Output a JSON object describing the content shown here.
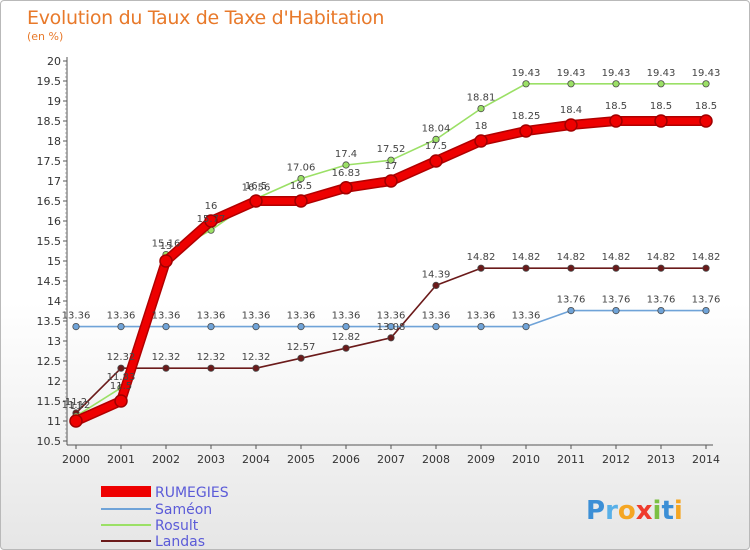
{
  "header": {
    "title": "Evolution du Taux de Taxe d'Habitation",
    "unit": "(en %)"
  },
  "chart_data": {
    "type": "line",
    "categories": [
      "2000",
      "2001",
      "2002",
      "2003",
      "2004",
      "2005",
      "2006",
      "2007",
      "2008",
      "2009",
      "2010",
      "2011",
      "2012",
      "2013",
      "2014"
    ],
    "ylim": [
      10.5,
      20
    ],
    "yticks": [
      "10.5",
      "11",
      "11.5",
      "12",
      "12.5",
      "13",
      "13.5",
      "14",
      "14.5",
      "15",
      "15.5",
      "16",
      "16.5",
      "17",
      "17.5",
      "18",
      "18.5",
      "19",
      "19.5",
      "20"
    ],
    "grid": false,
    "series": [
      {
        "name": "Landas",
        "color": "#6b1a1a",
        "values": [
          11.2,
          12.32,
          12.32,
          12.32,
          12.32,
          12.57,
          12.82,
          13.08,
          14.39,
          14.82,
          14.82,
          14.82,
          14.82,
          14.82,
          14.82
        ],
        "labels": [
          "11.2",
          "12.32",
          "12.32",
          "12.32",
          "12.32",
          "12.57",
          "12.82",
          "13.08",
          "14.39",
          "14.82",
          "14.82",
          "14.82",
          "14.82",
          "14.82",
          "14.82"
        ]
      },
      {
        "name": "Rosult",
        "color": "#9be066",
        "values": [
          11.12,
          11.83,
          15.16,
          15.77,
          16.56,
          17.06,
          17.4,
          17.52,
          18.04,
          18.81,
          19.43,
          19.43,
          19.43,
          19.43,
          19.43
        ],
        "labels": [
          "11.12",
          "11.83",
          "15.16",
          "15.77",
          "16.56",
          "17.06",
          "17.4",
          "17.52",
          "18.04",
          "18.81",
          "19.43",
          "19.43",
          "19.43",
          "19.43",
          "19.43"
        ]
      },
      {
        "name": "Saméon",
        "color": "#6fa3d8",
        "values": [
          13.36,
          13.36,
          13.36,
          13.36,
          13.36,
          13.36,
          13.36,
          13.36,
          13.36,
          13.36,
          13.36,
          13.76,
          13.76,
          13.76,
          13.76
        ],
        "labels": [
          "13.36",
          "13.36",
          "13.36",
          "13.36",
          "13.36",
          "13.36",
          "13.36",
          "13.36",
          "13.36",
          "13.36",
          "13.36",
          "13.76",
          "13.76",
          "13.76",
          "13.76"
        ]
      },
      {
        "name": "RUMEGIES",
        "color": "#ee0000",
        "values": [
          11,
          11.5,
          15,
          16,
          16.5,
          16.5,
          16.83,
          17,
          17.5,
          18,
          18.25,
          18.4,
          18.5,
          18.5,
          18.5
        ],
        "labels": [
          "11",
          "11.5",
          "15",
          "16",
          "16.5",
          "16.5",
          "16.83",
          "17",
          "17.5",
          "18",
          "18.25",
          "18.4",
          "18.5",
          "18.5",
          "18.5"
        ]
      }
    ],
    "legend": [
      "RUMEGIES",
      "Saméon",
      "Rosult",
      "Landas"
    ]
  },
  "branding": {
    "logo": "Proxiti"
  }
}
